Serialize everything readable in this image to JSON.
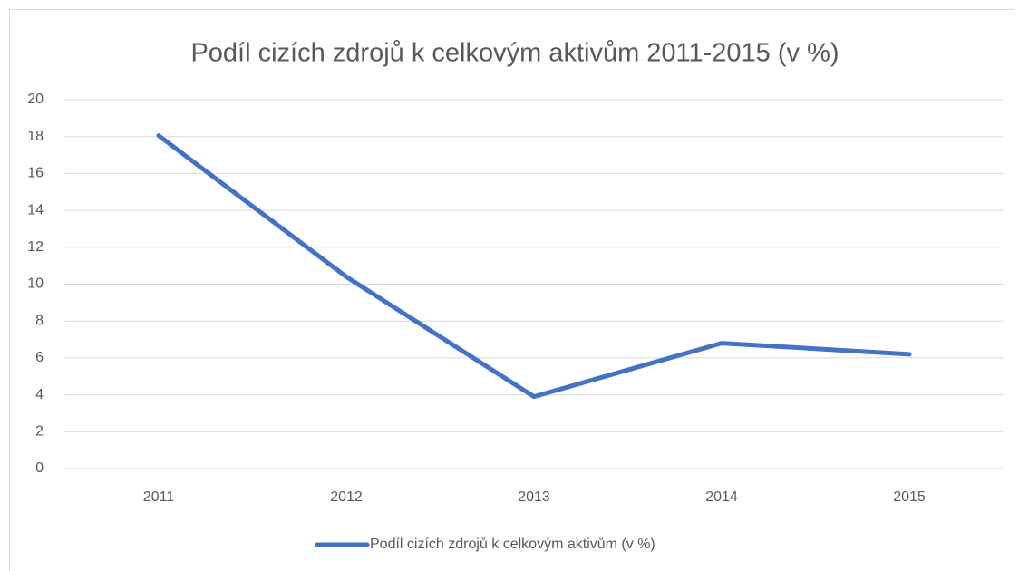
{
  "chart_data": {
    "type": "line",
    "title": "Podíl cizích zdrojů k celkovým aktivům 2011-2015 (v %)",
    "categories": [
      "2011",
      "2012",
      "2013",
      "2014",
      "2015"
    ],
    "series": [
      {
        "name": "Podíl cizích zdrojů k celkovým aktivům (v %)",
        "color": "#4472c4",
        "values": [
          18.05,
          10.4,
          3.9,
          6.8,
          6.2
        ]
      }
    ],
    "ylim": [
      0,
      20
    ],
    "yticks": [
      0,
      2,
      4,
      6,
      8,
      10,
      12,
      14,
      16,
      18,
      20
    ],
    "grid": true,
    "legend": "bottom"
  }
}
